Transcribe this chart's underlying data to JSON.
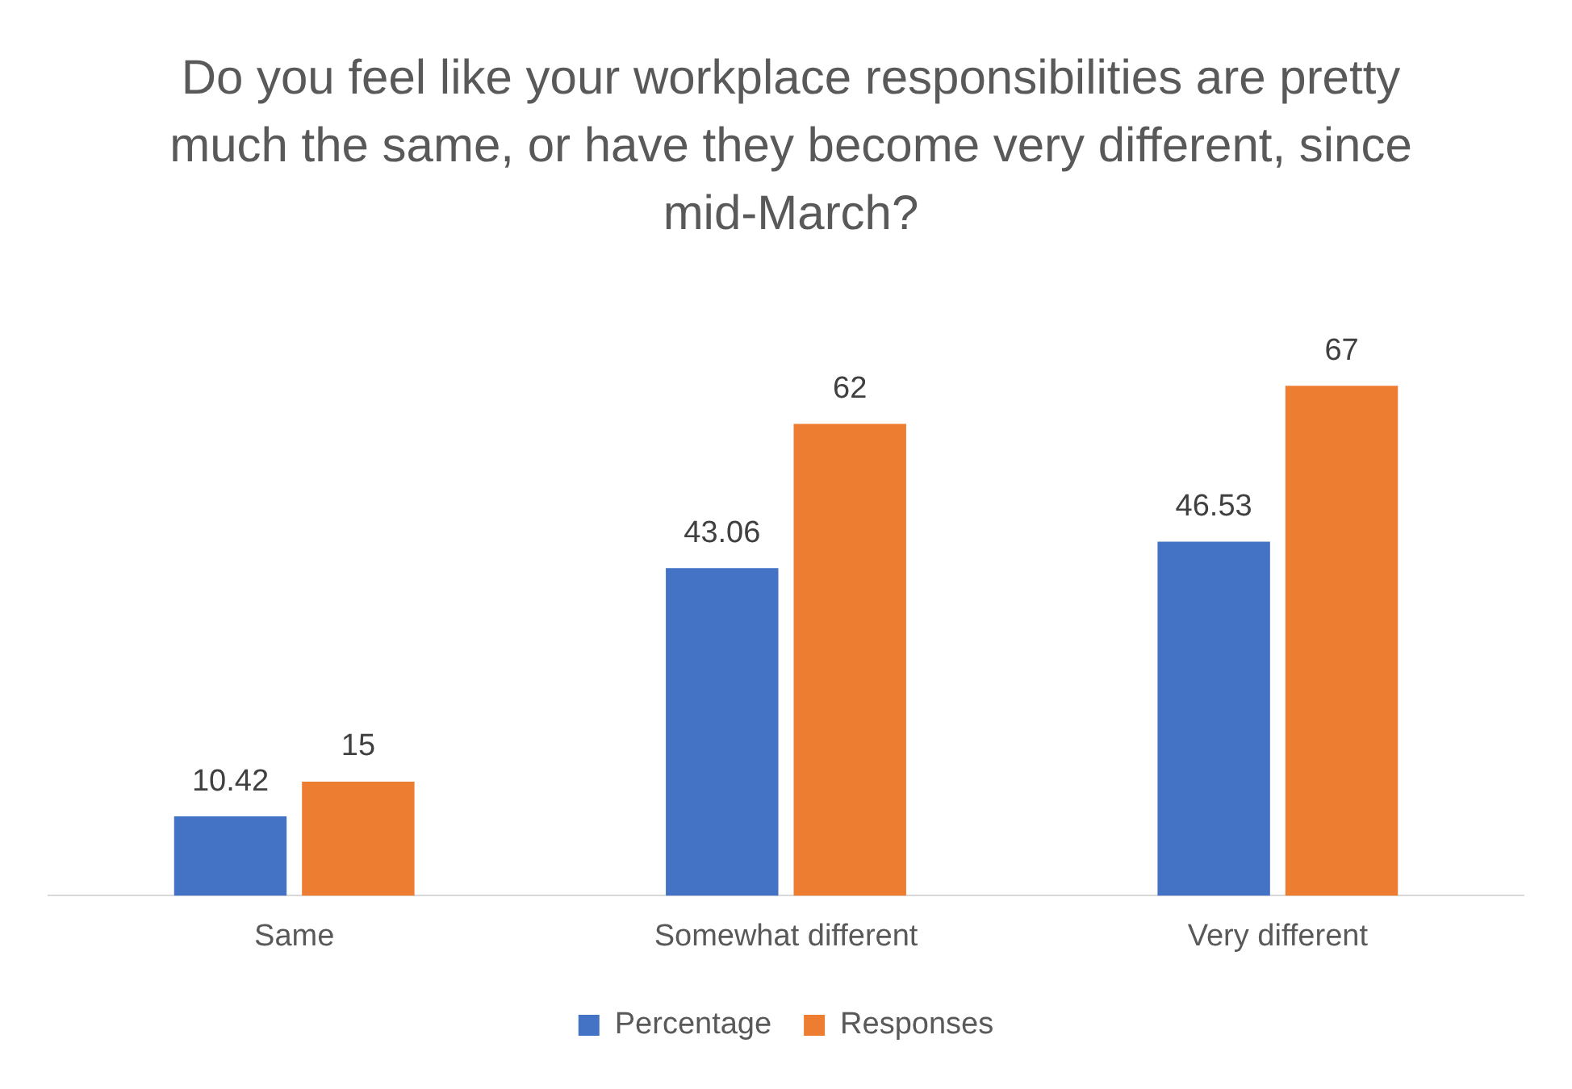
{
  "chart_data": {
    "type": "bar",
    "title": "Do you feel like your workplace responsibilities are pretty much the same, or have they become very different, since mid-March?",
    "categories": [
      "Same",
      "Somewhat different",
      "Very different"
    ],
    "series": [
      {
        "name": "Percentage",
        "color": "#4472c4",
        "values": [
          10.42,
          43.06,
          46.53
        ]
      },
      {
        "name": "Responses",
        "color": "#ed7d31",
        "values": [
          15,
          62,
          67
        ]
      }
    ],
    "data_labels": true,
    "legend": "bottom",
    "grid": false
  }
}
